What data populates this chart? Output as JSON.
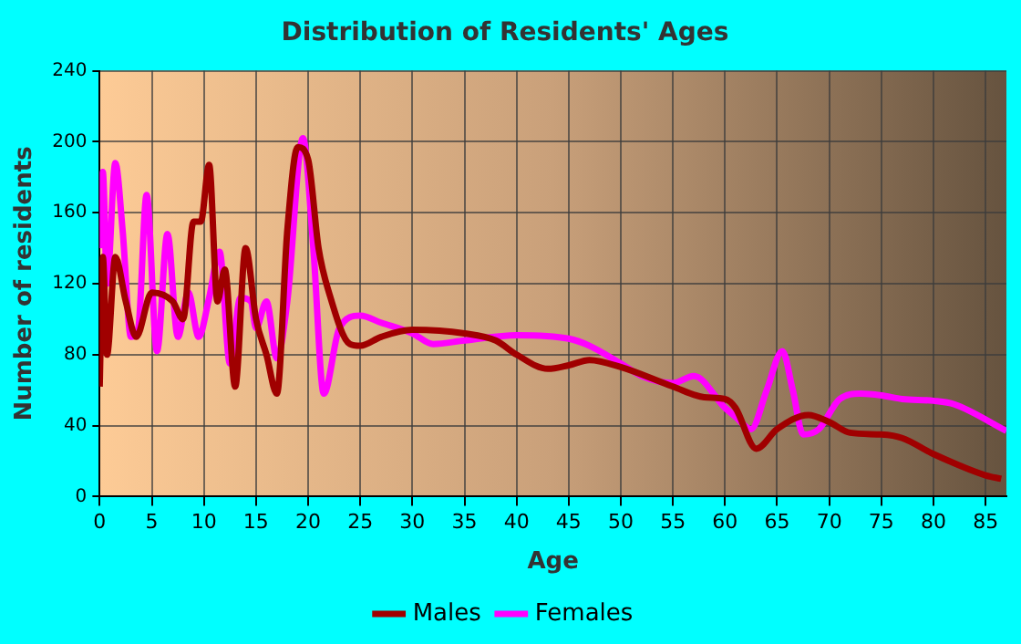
{
  "chart_data": {
    "type": "line",
    "title": "Distribution of Residents' Ages",
    "xlabel": "Age",
    "ylabel": "Number of residents",
    "xlim": [
      0,
      87
    ],
    "xticks": [
      0,
      5,
      10,
      15,
      20,
      25,
      30,
      35,
      40,
      45,
      50,
      55,
      60,
      65,
      70,
      75,
      80,
      85
    ],
    "ylim": [
      0,
      240
    ],
    "yticks": [
      0,
      40,
      80,
      120,
      160,
      200,
      240
    ],
    "grid": true,
    "legend": "bottom",
    "series": [
      {
        "name": "Males",
        "color": "#a00000",
        "x": [
          0,
          0.3,
          0.7,
          1.5,
          2.5,
          3.5,
          5,
          7,
          8,
          9,
          9.7,
          10.5,
          11.3,
          12,
          13,
          14,
          15,
          16,
          17,
          18,
          19,
          20,
          21,
          22,
          24,
          25,
          27,
          30,
          35,
          38,
          40,
          43,
          45,
          47,
          50,
          55,
          58,
          60,
          61,
          63,
          65,
          68,
          70,
          72,
          75,
          77,
          80,
          85,
          86.5
        ],
        "values": [
          62,
          135,
          80,
          135,
          110,
          90,
          115,
          110,
          100,
          155,
          155,
          187,
          110,
          128,
          62,
          140,
          100,
          80,
          58,
          150,
          197,
          190,
          140,
          115,
          86,
          85,
          90,
          94,
          92,
          88,
          80,
          72,
          74,
          77,
          73,
          62,
          56,
          55,
          50,
          27,
          38,
          46,
          42,
          36,
          35,
          33,
          24,
          12,
          10
        ]
      },
      {
        "name": "Females",
        "color": "#ff00ff",
        "x": [
          0,
          0.3,
          0.7,
          1.5,
          2.2,
          3,
          3.7,
          4.5,
          5.5,
          6.5,
          7.5,
          8.5,
          9.5,
          10.5,
          11.5,
          12.5,
          13.5,
          14.5,
          15,
          16,
          17,
          18,
          19.5,
          20.5,
          21.5,
          23,
          25,
          27,
          30,
          32,
          35,
          40,
          45,
          47,
          50,
          52,
          55,
          57,
          60,
          61,
          62.5,
          64,
          65.5,
          66.5,
          67.5,
          69,
          71,
          73,
          75,
          77,
          80,
          82,
          87
        ],
        "values": [
          140,
          183,
          120,
          188,
          150,
          90,
          95,
          170,
          82,
          148,
          90,
          115,
          90,
          112,
          138,
          75,
          112,
          110,
          95,
          110,
          78,
          110,
          202,
          140,
          58,
          95,
          102,
          98,
          92,
          86,
          88,
          91,
          89,
          85,
          75,
          68,
          64,
          68,
          50,
          45,
          38,
          60,
          82,
          60,
          35,
          38,
          55,
          58,
          57,
          55,
          54,
          52,
          37
        ]
      }
    ]
  }
}
